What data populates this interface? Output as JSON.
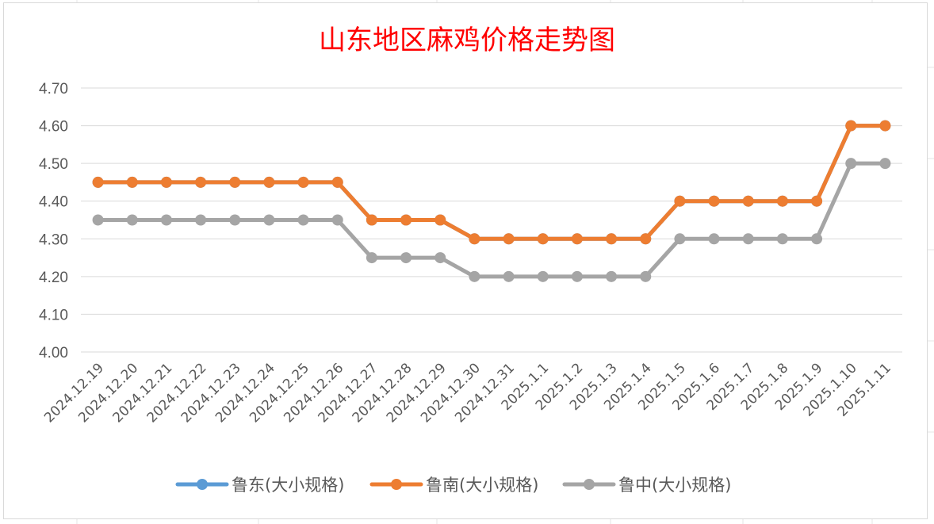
{
  "chart_data": {
    "type": "line",
    "title": "山东地区麻鸡价格走势图",
    "xlabel": "",
    "ylabel": "",
    "ylim": [
      4.0,
      4.7
    ],
    "yticks": [
      "4.70",
      "4.60",
      "4.50",
      "4.40",
      "4.30",
      "4.20",
      "4.10",
      "4.00"
    ],
    "grid": true,
    "legend_position": "bottom",
    "categories": [
      "2024.12.19",
      "2024.12.20",
      "2024.12.21",
      "2024.12.22",
      "2024.12.23",
      "2024.12.24",
      "2024.12.25",
      "2024.12.26",
      "2024.12.27",
      "2024.12.28",
      "2024.12.29",
      "2024.12.30",
      "2024.12.31",
      "2025.1.1",
      "2025.1.2",
      "2025.1.3",
      "2025.1.4",
      "2025.1.5",
      "2025.1.6",
      "2025.1.7",
      "2025.1.8",
      "2025.1.9",
      "2025.1.10",
      "2025.1.11"
    ],
    "series": [
      {
        "name": "鲁东(大小规格)",
        "color": "#5b9bd5",
        "values": [
          4.45,
          4.45,
          4.45,
          4.45,
          4.45,
          4.45,
          4.45,
          4.45,
          4.35,
          4.35,
          4.35,
          4.3,
          4.3,
          4.3,
          4.3,
          4.3,
          4.3,
          4.4,
          4.4,
          4.4,
          4.4,
          4.4,
          4.6,
          4.6
        ]
      },
      {
        "name": "鲁南(大小规格)",
        "color": "#ed7d31",
        "values": [
          4.45,
          4.45,
          4.45,
          4.45,
          4.45,
          4.45,
          4.45,
          4.45,
          4.35,
          4.35,
          4.35,
          4.3,
          4.3,
          4.3,
          4.3,
          4.3,
          4.3,
          4.4,
          4.4,
          4.4,
          4.4,
          4.4,
          4.6,
          4.6
        ]
      },
      {
        "name": "鲁中(大小规格)",
        "color": "#a5a5a5",
        "values": [
          4.35,
          4.35,
          4.35,
          4.35,
          4.35,
          4.35,
          4.35,
          4.35,
          4.25,
          4.25,
          4.25,
          4.2,
          4.2,
          4.2,
          4.2,
          4.2,
          4.2,
          4.3,
          4.3,
          4.3,
          4.3,
          4.3,
          4.5,
          4.5
        ]
      }
    ]
  }
}
